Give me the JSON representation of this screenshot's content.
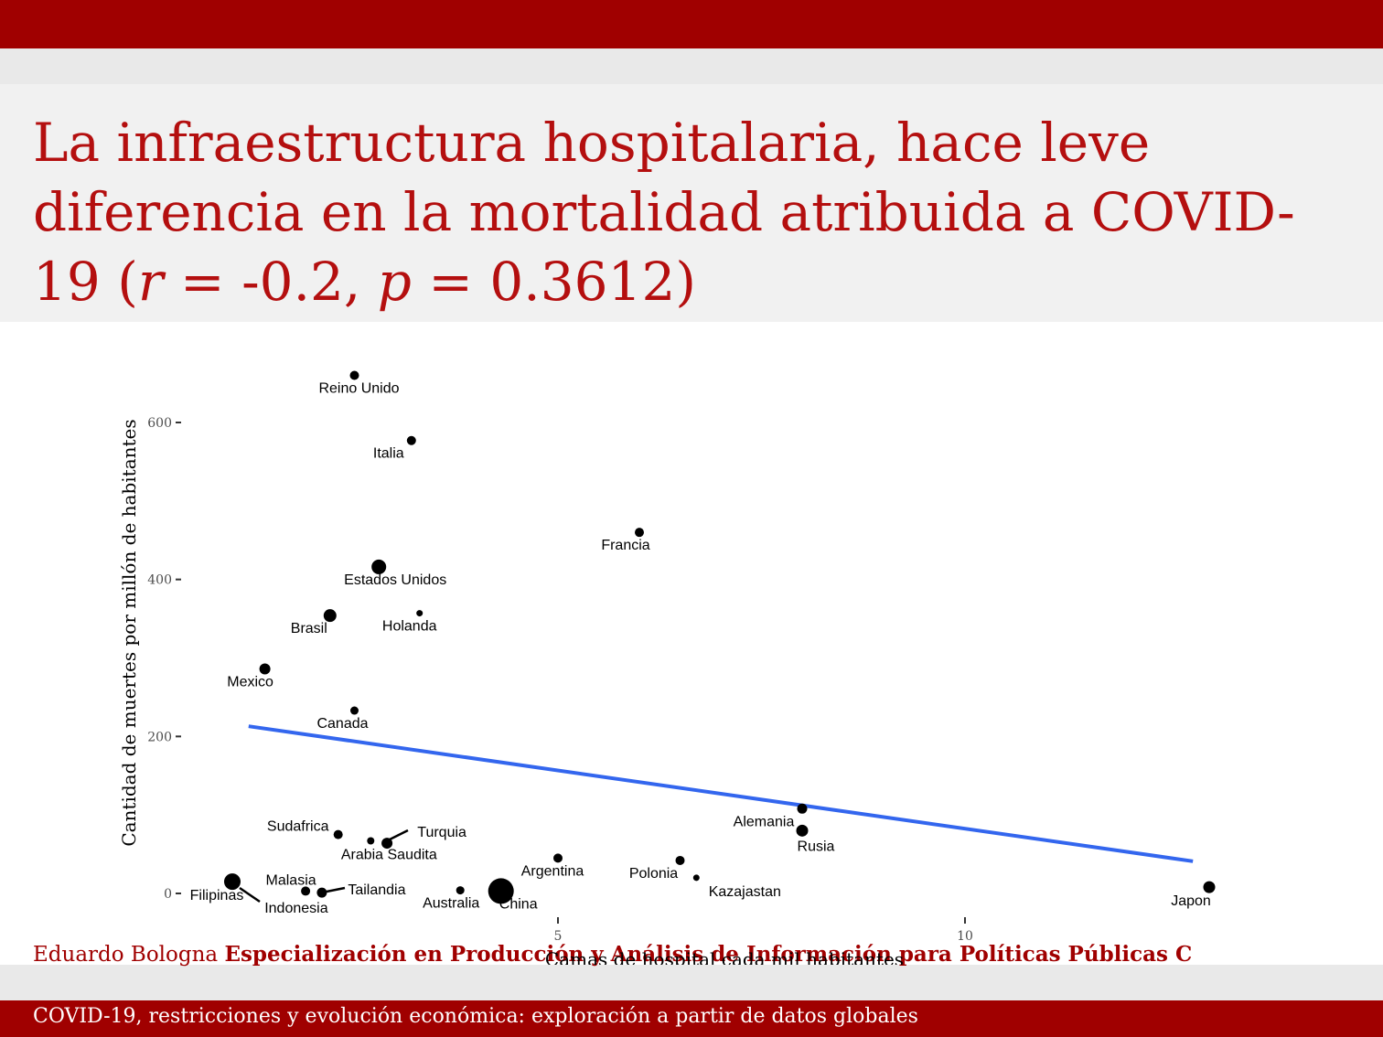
{
  "slide": {
    "title_part1": "La infraestructura hospitalaria, hace leve diferencia en la mortalidad atribuida a COVID-19 (",
    "r_symbol": "r",
    "title_part2": " = -0.2, ",
    "p_symbol": "p",
    "title_part3": " = 0.3612)",
    "footer_author": "Eduardo Bologna",
    "footer_program": "Especialización en Producción y Análisis de Información para Políticas Públicas C",
    "footer_subtitle": "COVID-19, restricciones y evolución económica: exploración a partir de datos globales"
  },
  "colors": {
    "brand_red": "#a00000",
    "title_red": "#b40f0f",
    "trend_line": "#3366ee"
  },
  "chart_data": {
    "type": "scatter",
    "xlabel": "Camas de hospital cada mil habitantes",
    "ylabel": "Cantidad de muertes por millón de habitantes",
    "xlim": [
      0.3,
      13.0
    ],
    "ylim": [
      -25,
      665
    ],
    "xticks": [
      5,
      10
    ],
    "yticks": [
      0,
      200,
      400,
      600
    ],
    "grid": false,
    "trend_line": {
      "x": [
        1.2,
        12.8
      ],
      "y": [
        213,
        41
      ]
    },
    "points": [
      {
        "name": "Reino Unido",
        "x": 2.5,
        "y": 660,
        "size": 5
      },
      {
        "name": "Italia",
        "x": 3.2,
        "y": 577,
        "size": 5
      },
      {
        "name": "Francia",
        "x": 6.0,
        "y": 460,
        "size": 5
      },
      {
        "name": "Estados Unidos",
        "x": 2.8,
        "y": 416,
        "size": 8
      },
      {
        "name": "Brasil",
        "x": 2.2,
        "y": 354,
        "size": 7
      },
      {
        "name": "Holanda",
        "x": 3.3,
        "y": 357,
        "size": 3.5
      },
      {
        "name": "Mexico",
        "x": 1.4,
        "y": 286,
        "size": 6
      },
      {
        "name": "Canada",
        "x": 2.5,
        "y": 233,
        "size": 4.5
      },
      {
        "name": "Sudafrica",
        "x": 2.3,
        "y": 75,
        "size": 5
      },
      {
        "name": "Turquia",
        "x": 2.9,
        "y": 64,
        "size": 6
      },
      {
        "name": "Arabia Saudita",
        "x": 2.7,
        "y": 67,
        "size": 4
      },
      {
        "name": "Argentina",
        "x": 5.0,
        "y": 45,
        "size": 5
      },
      {
        "name": "Alemania",
        "x": 8.0,
        "y": 108,
        "size": 5.5
      },
      {
        "name": "Rusia",
        "x": 8.0,
        "y": 80,
        "size": 6.5
      },
      {
        "name": "Polonia",
        "x": 6.5,
        "y": 42,
        "size": 5
      },
      {
        "name": "Kazajastan",
        "x": 6.7,
        "y": 20,
        "size": 3.5
      },
      {
        "name": "Filipinas",
        "x": 1.0,
        "y": 15,
        "size": 9
      },
      {
        "name": "Malasia",
        "x": 1.9,
        "y": 3,
        "size": 5
      },
      {
        "name": "Tailandia",
        "x": 2.1,
        "y": 1,
        "size": 5.5
      },
      {
        "name": "Indonesia",
        "x": 2.1,
        "y": 0,
        "size": 3
      },
      {
        "name": "Australia",
        "x": 3.8,
        "y": 4,
        "size": 4.5
      },
      {
        "name": "China",
        "x": 4.3,
        "y": 3,
        "size": 14
      },
      {
        "name": "Japon",
        "x": 13.0,
        "y": 8,
        "size": 6.5
      }
    ]
  }
}
